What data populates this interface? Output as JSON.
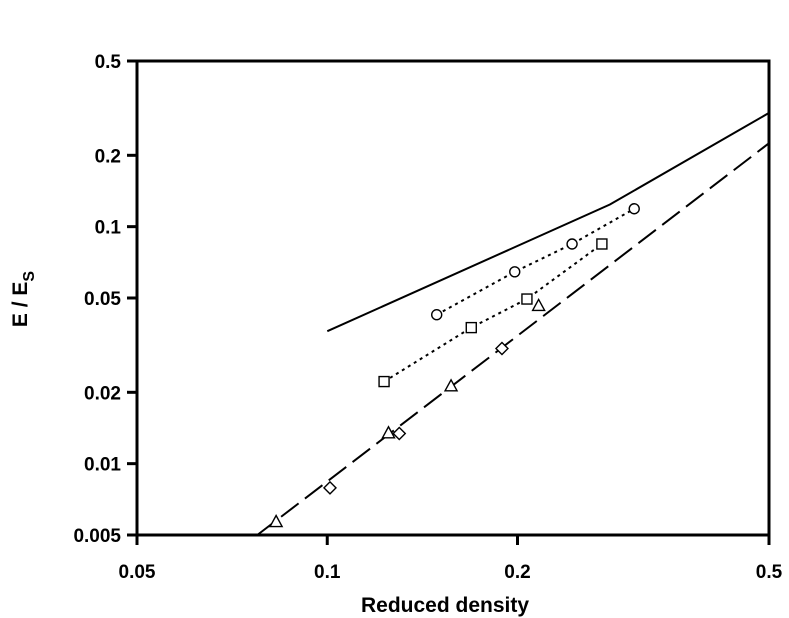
{
  "chart_data": {
    "type": "scatter",
    "title": "",
    "xlabel": "Reduced density",
    "ylabel": "E / E",
    "ylabel_subscript": "S",
    "xscale": "log",
    "yscale": "log",
    "xlim": [
      0.05,
      0.5
    ],
    "ylim": [
      0.005,
      0.5
    ],
    "grid": false,
    "legend": "none",
    "x_ticks": [
      {
        "value": 0.05,
        "label": "0.05"
      },
      {
        "value": 0.1,
        "label": "0.1"
      },
      {
        "value": 0.2,
        "label": "0.2"
      },
      {
        "value": 0.5,
        "label": "0.5"
      }
    ],
    "y_ticks": [
      {
        "value": 0.005,
        "label": "0.005"
      },
      {
        "value": 0.01,
        "label": "0.01"
      },
      {
        "value": 0.02,
        "label": "0.02"
      },
      {
        "value": 0.05,
        "label": "0.05"
      },
      {
        "value": 0.1,
        "label": "0.1"
      },
      {
        "value": 0.2,
        "label": "0.2"
      },
      {
        "value": 0.5,
        "label": "0.5"
      }
    ],
    "series": [
      {
        "marker": "circle",
        "line": "dotted",
        "color": "#000000",
        "points": [
          [
            0.149,
            0.0425
          ],
          [
            0.198,
            0.0645
          ],
          [
            0.244,
            0.0845
          ],
          [
            0.306,
            0.119
          ]
        ]
      },
      {
        "marker": "square",
        "line": "dotted",
        "color": "#000000",
        "points": [
          [
            0.123,
            0.0222
          ],
          [
            0.169,
            0.0375
          ],
          [
            0.207,
            0.0495
          ],
          [
            0.272,
            0.0845
          ]
        ]
      },
      {
        "marker": "triangle",
        "line": "none",
        "color": "#000000",
        "points": [
          [
            0.083,
            0.0057
          ],
          [
            0.125,
            0.0135
          ],
          [
            0.157,
            0.0213
          ],
          [
            0.216,
            0.0465
          ]
        ]
      },
      {
        "marker": "diamond",
        "line": "none",
        "color": "#000000",
        "points": [
          [
            0.101,
            0.0079
          ],
          [
            0.13,
            0.0134
          ],
          [
            0.189,
            0.0306
          ]
        ]
      },
      {
        "marker": "none",
        "line": "solid",
        "color": "#000000",
        "points": [
          [
            0.1,
            0.0362
          ],
          [
            0.28,
            0.124
          ],
          [
            0.5,
            0.302
          ]
        ]
      },
      {
        "marker": "none",
        "line": "long-dash",
        "color": "#000000",
        "points": [
          [
            0.0775,
            0.005
          ],
          [
            0.5,
            0.225
          ]
        ]
      }
    ]
  }
}
